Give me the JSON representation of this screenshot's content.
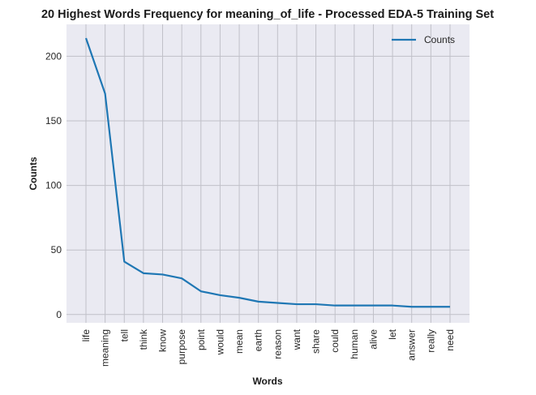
{
  "chart_data": {
    "type": "line",
    "title": "20 Highest Words Frequency for meaning_of_life - Processed EDA-5 Training Set",
    "xlabel": "Words",
    "ylabel": "Counts",
    "categories": [
      "life",
      "meaning",
      "tell",
      "think",
      "know",
      "purpose",
      "point",
      "would",
      "mean",
      "earth",
      "reason",
      "want",
      "share",
      "could",
      "human",
      "alive",
      "let",
      "answer",
      "really",
      "need"
    ],
    "series": [
      {
        "name": "Counts",
        "values": [
          214,
          171,
          41,
          32,
          31,
          28,
          18,
          15,
          13,
          10,
          9,
          8,
          8,
          7,
          7,
          7,
          7,
          6,
          6,
          6
        ]
      }
    ],
    "yticks": [
      0,
      50,
      100,
      150,
      200
    ],
    "ylim": [
      -6.4,
      224.7
    ],
    "grid": true,
    "legend": "top-right",
    "colors": {
      "line": "#1f77b4",
      "background": "#eaeaf2",
      "grid": "#c0c0c8"
    }
  }
}
